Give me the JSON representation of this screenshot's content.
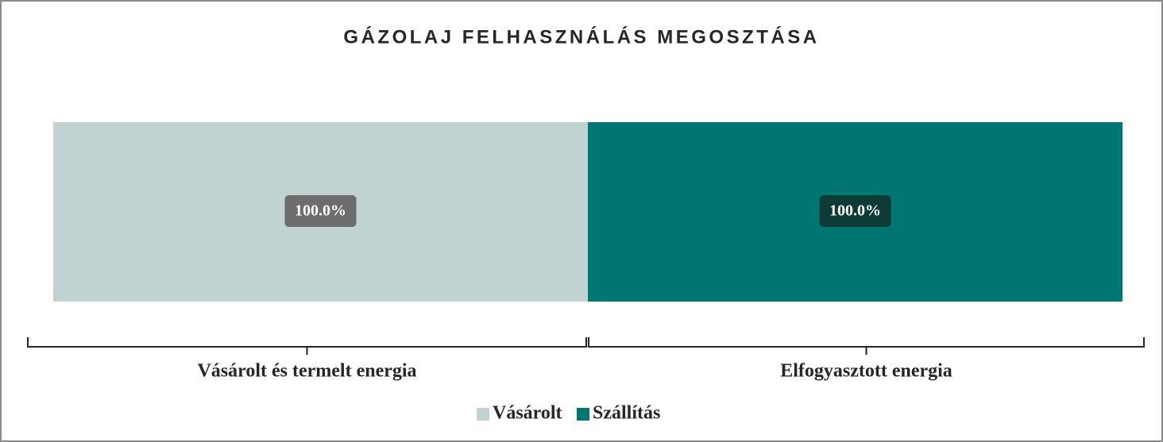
{
  "chart_data": {
    "type": "bar",
    "title": "GÁZOLAJ FELHASZNÁLÁS MEGOSZTÁSA",
    "categories": [
      "Vásárolt és termelt energia",
      "Elfogyasztott energia"
    ],
    "series": [
      {
        "name": "Vásárolt",
        "color": "#c1d3d1",
        "label_color": "#6b6e6c",
        "values": [
          100,
          null
        ],
        "value_labels": [
          "100.0%",
          null
        ]
      },
      {
        "name": "Szállítás",
        "color": "#007672",
        "label_color": "#0d3b36",
        "values": [
          null,
          100
        ],
        "value_labels": [
          null,
          "100.0%"
        ]
      }
    ],
    "ylim": [
      0,
      100
    ],
    "stacked": true,
    "legend": "bottom"
  }
}
